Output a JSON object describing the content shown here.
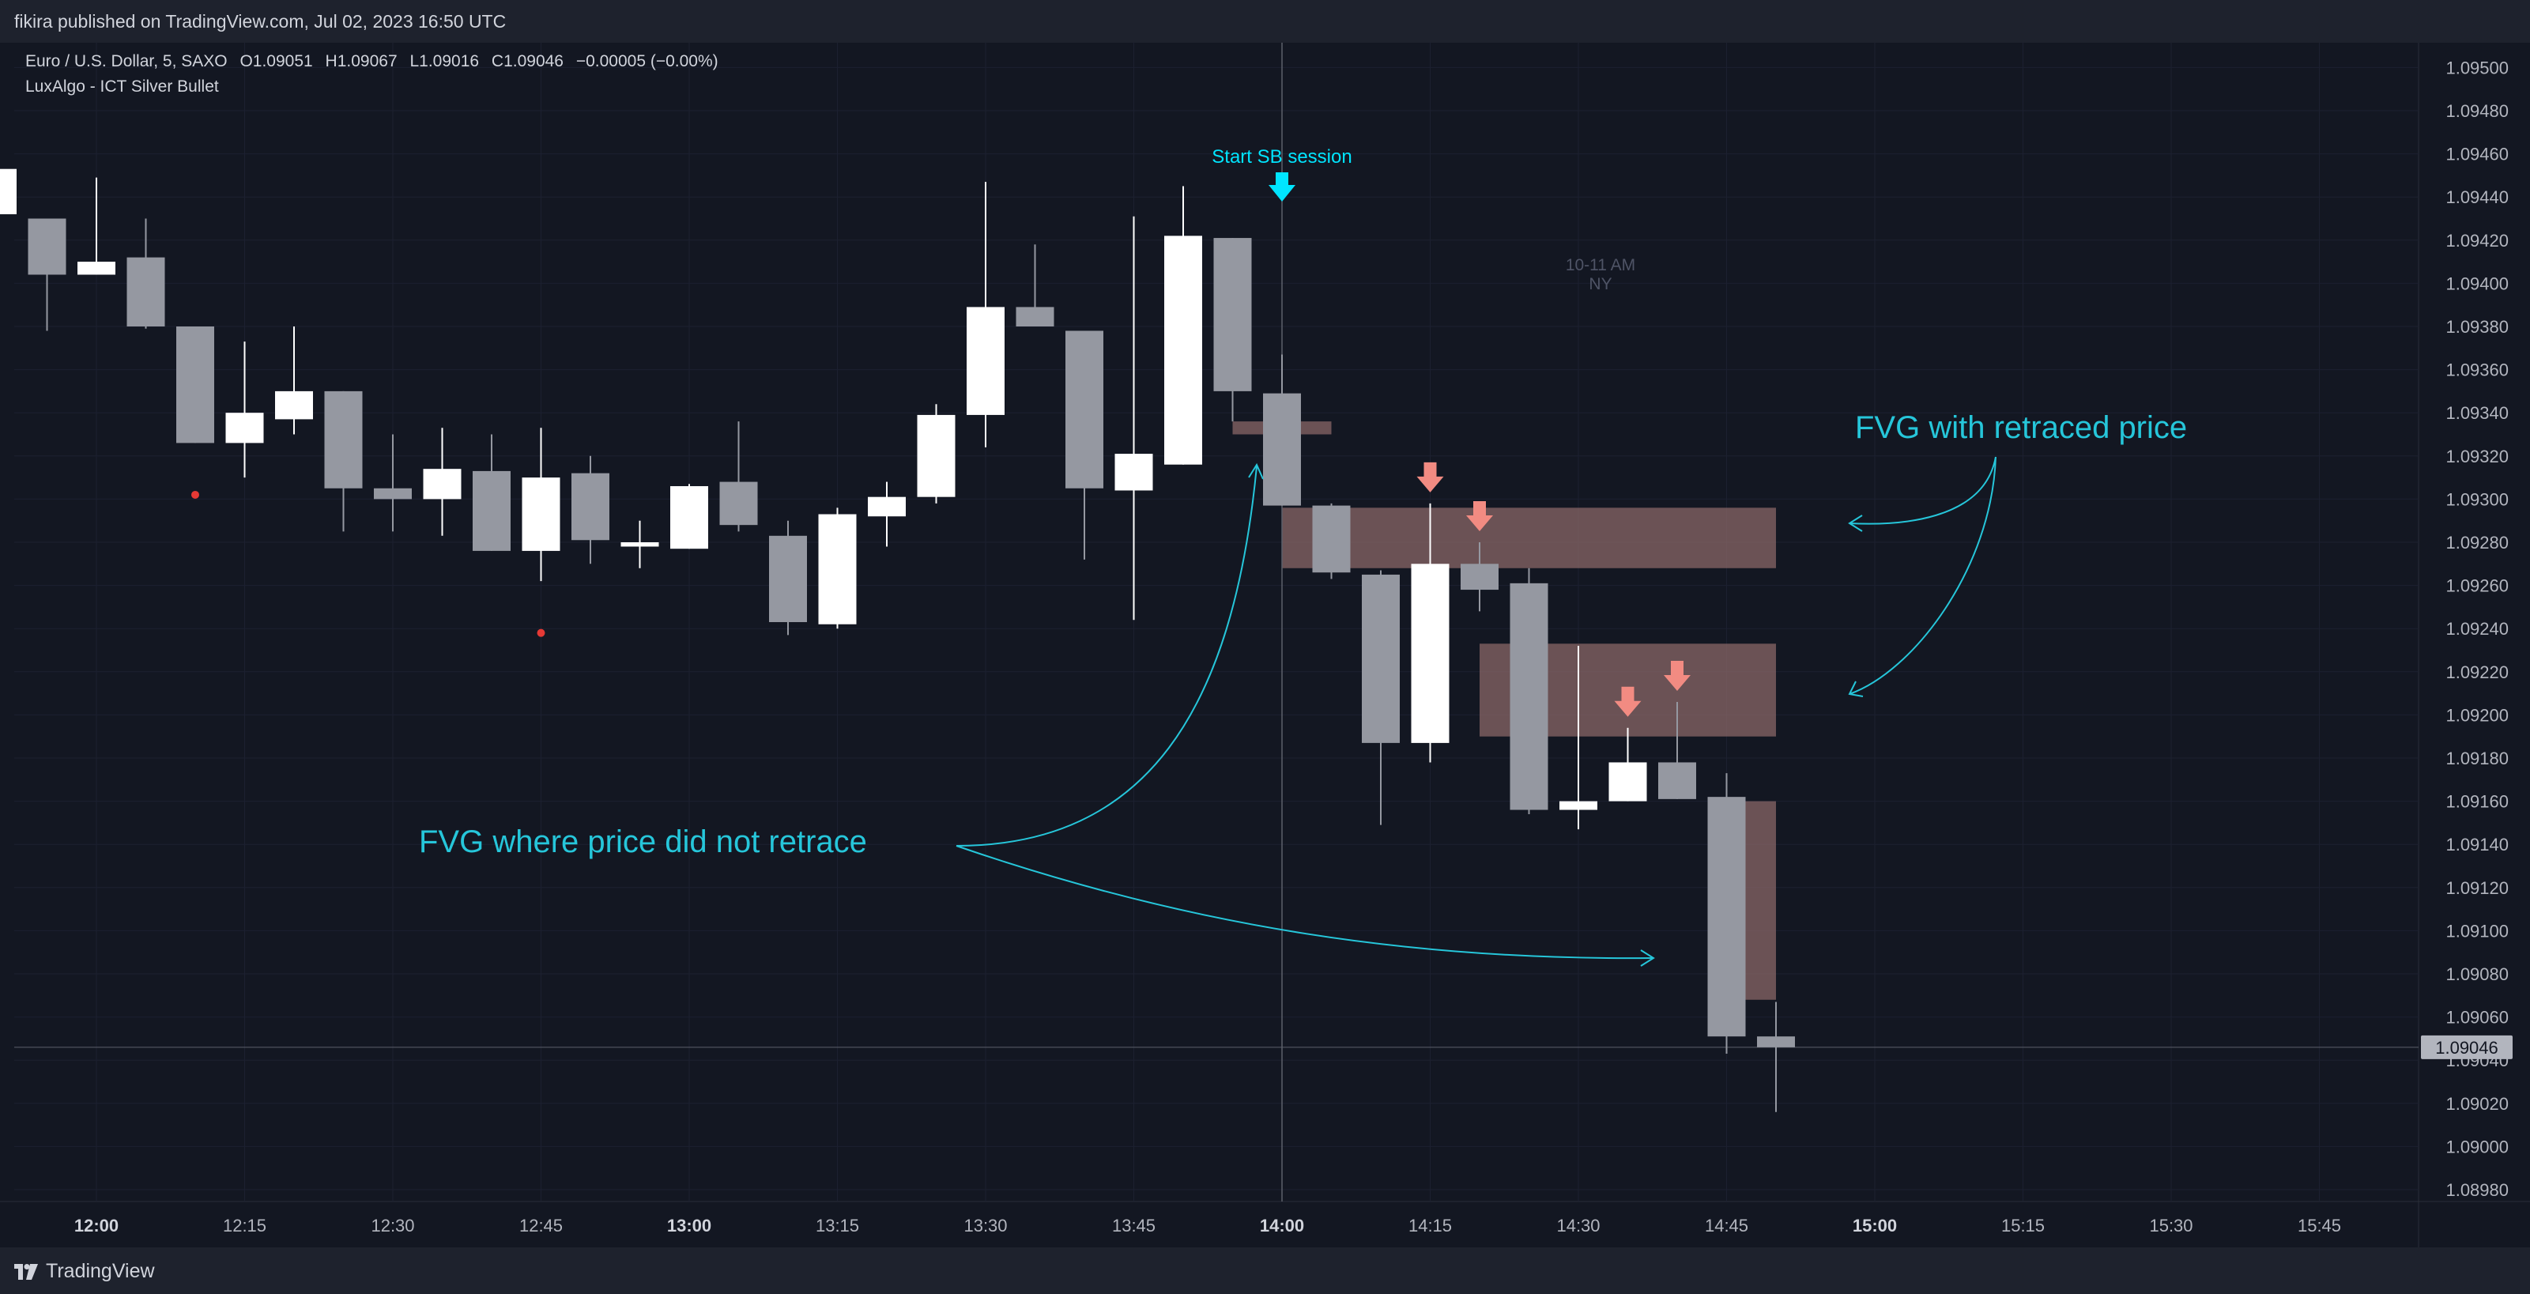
{
  "header": {
    "published": "fikira published on TradingView.com, Jul 02, 2023 16:50 UTC"
  },
  "legend": {
    "symbol": "Euro / U.S. Dollar, 5, SAXO",
    "open": "O1.09051",
    "high": "H1.09067",
    "low": "L1.09016",
    "close": "C1.09046",
    "change": "−0.00005 (−0.00%)",
    "indicator": "LuxAlgo - ICT Silver Bullet"
  },
  "footer": {
    "brand": "TradingView"
  },
  "colors": {
    "background": "#131722",
    "bull_candle": "#ffffff",
    "bear_candle": "#9598a1",
    "fvg_box": "#8d6a6a",
    "arrow_session": "#00e5ff",
    "arrow_bear": "#f28b82",
    "annotation": "#26c6da",
    "dot": "#e53935"
  },
  "chart_data": {
    "type": "candlestick",
    "price_axis": {
      "range": [
        1.0897,
        1.0951
      ],
      "ticks": [
        "1.09500",
        "1.09480",
        "1.09460",
        "1.09440",
        "1.09420",
        "1.09400",
        "1.09380",
        "1.09360",
        "1.09340",
        "1.09320",
        "1.09300",
        "1.09280",
        "1.09260",
        "1.09240",
        "1.09220",
        "1.09200",
        "1.09180",
        "1.09160",
        "1.09140",
        "1.09120",
        "1.09100",
        "1.09080",
        "1.09060",
        "1.09040",
        "1.09020",
        "1.09000",
        "1.08980"
      ],
      "last_price": "1.09046"
    },
    "time_axis": {
      "ticks": [
        {
          "t": "12:00",
          "label": "12:00",
          "bold": true
        },
        {
          "t": "12:15",
          "label": "12:15",
          "bold": false
        },
        {
          "t": "12:30",
          "label": "12:30",
          "bold": false
        },
        {
          "t": "12:45",
          "label": "12:45",
          "bold": false
        },
        {
          "t": "13:00",
          "label": "13:00",
          "bold": true
        },
        {
          "t": "13:15",
          "label": "13:15",
          "bold": false
        },
        {
          "t": "13:30",
          "label": "13:30",
          "bold": false
        },
        {
          "t": "13:45",
          "label": "13:45",
          "bold": false
        },
        {
          "t": "14:00",
          "label": "14:00",
          "bold": true
        },
        {
          "t": "14:15",
          "label": "14:15",
          "bold": false
        },
        {
          "t": "14:30",
          "label": "14:30",
          "bold": false
        },
        {
          "t": "14:45",
          "label": "14:45",
          "bold": false
        },
        {
          "t": "15:00",
          "label": "15:00",
          "bold": true
        },
        {
          "t": "15:15",
          "label": "15:15",
          "bold": false
        },
        {
          "t": "15:30",
          "label": "15:30",
          "bold": false
        },
        {
          "t": "15:45",
          "label": "15:45",
          "bold": false
        }
      ]
    },
    "candles": [
      {
        "t": "11:50",
        "o": 1.09432,
        "h": 1.09455,
        "l": 1.094,
        "c": 1.09453
      },
      {
        "t": "11:55",
        "o": 1.0943,
        "h": 1.0943,
        "l": 1.09378,
        "c": 1.09404
      },
      {
        "t": "12:00",
        "o": 1.09404,
        "h": 1.09449,
        "l": 1.09404,
        "c": 1.0941
      },
      {
        "t": "12:05",
        "o": 1.09412,
        "h": 1.0943,
        "l": 1.09379,
        "c": 1.0938
      },
      {
        "t": "12:10",
        "o": 1.0938,
        "h": 1.0938,
        "l": 1.09326,
        "c": 1.09326
      },
      {
        "t": "12:15",
        "o": 1.09326,
        "h": 1.09373,
        "l": 1.0931,
        "c": 1.0934
      },
      {
        "t": "12:20",
        "o": 1.09337,
        "h": 1.0938,
        "l": 1.0933,
        "c": 1.0935
      },
      {
        "t": "12:25",
        "o": 1.0935,
        "h": 1.0935,
        "l": 1.09285,
        "c": 1.09305
      },
      {
        "t": "12:30",
        "o": 1.09305,
        "h": 1.0933,
        "l": 1.09285,
        "c": 1.093
      },
      {
        "t": "12:35",
        "o": 1.093,
        "h": 1.09333,
        "l": 1.09283,
        "c": 1.09314
      },
      {
        "t": "12:40",
        "o": 1.09313,
        "h": 1.0933,
        "l": 1.09276,
        "c": 1.09276
      },
      {
        "t": "12:45",
        "o": 1.09276,
        "h": 1.09333,
        "l": 1.09262,
        "c": 1.0931
      },
      {
        "t": "12:50",
        "o": 1.09312,
        "h": 1.0932,
        "l": 1.0927,
        "c": 1.09281
      },
      {
        "t": "12:55",
        "o": 1.09278,
        "h": 1.0929,
        "l": 1.09268,
        "c": 1.0928
      },
      {
        "t": "13:00",
        "o": 1.09277,
        "h": 1.09307,
        "l": 1.09277,
        "c": 1.09306
      },
      {
        "t": "13:05",
        "o": 1.09308,
        "h": 1.09336,
        "l": 1.09285,
        "c": 1.09288
      },
      {
        "t": "13:10",
        "o": 1.09283,
        "h": 1.0929,
        "l": 1.09237,
        "c": 1.09243
      },
      {
        "t": "13:15",
        "o": 1.09242,
        "h": 1.09296,
        "l": 1.0924,
        "c": 1.09293
      },
      {
        "t": "13:20",
        "o": 1.09292,
        "h": 1.09308,
        "l": 1.09278,
        "c": 1.09301
      },
      {
        "t": "13:25",
        "o": 1.09301,
        "h": 1.09344,
        "l": 1.09298,
        "c": 1.09339
      },
      {
        "t": "13:30",
        "o": 1.09339,
        "h": 1.09447,
        "l": 1.09324,
        "c": 1.09389
      },
      {
        "t": "13:35",
        "o": 1.09389,
        "h": 1.09418,
        "l": 1.0938,
        "c": 1.0938
      },
      {
        "t": "13:40",
        "o": 1.09378,
        "h": 1.09378,
        "l": 1.09272,
        "c": 1.09305
      },
      {
        "t": "13:45",
        "o": 1.09304,
        "h": 1.09431,
        "l": 1.09244,
        "c": 1.09321
      },
      {
        "t": "13:50",
        "o": 1.09316,
        "h": 1.09445,
        "l": 1.09316,
        "c": 1.09422
      },
      {
        "t": "13:55",
        "o": 1.09421,
        "h": 1.09421,
        "l": 1.09336,
        "c": 1.0935
      },
      {
        "t": "14:00",
        "o": 1.09349,
        "h": 1.09367,
        "l": 1.09297,
        "c": 1.09297
      },
      {
        "t": "14:05",
        "o": 1.09297,
        "h": 1.09298,
        "l": 1.09263,
        "c": 1.09266
      },
      {
        "t": "14:10",
        "o": 1.09265,
        "h": 1.09267,
        "l": 1.09149,
        "c": 1.09187
      },
      {
        "t": "14:15",
        "o": 1.09187,
        "h": 1.09298,
        "l": 1.09178,
        "c": 1.0927
      },
      {
        "t": "14:20",
        "o": 1.0927,
        "h": 1.0928,
        "l": 1.09248,
        "c": 1.09258
      },
      {
        "t": "14:25",
        "o": 1.09261,
        "h": 1.09268,
        "l": 1.09154,
        "c": 1.09156
      },
      {
        "t": "14:30",
        "o": 1.09156,
        "h": 1.09232,
        "l": 1.09147,
        "c": 1.0916
      },
      {
        "t": "14:35",
        "o": 1.0916,
        "h": 1.09194,
        "l": 1.0916,
        "c": 1.09178
      },
      {
        "t": "14:40",
        "o": 1.09178,
        "h": 1.09206,
        "l": 1.09161,
        "c": 1.09161
      },
      {
        "t": "14:45",
        "o": 1.09162,
        "h": 1.09173,
        "l": 1.09043,
        "c": 1.09051
      },
      {
        "t": "14:50",
        "o": 1.09051,
        "h": 1.09067,
        "l": 1.09016,
        "c": 1.09046
      }
    ],
    "fvg_boxes": [
      {
        "from": "13:55",
        "to": "14:05",
        "top": 1.09336,
        "bottom": 1.0933
      },
      {
        "from": "14:00",
        "to": "14:50",
        "top": 1.09296,
        "bottom": 1.09268
      },
      {
        "from": "14:20",
        "to": "14:50",
        "top": 1.09233,
        "bottom": 1.0919
      },
      {
        "from": "14:45",
        "to": "14:50",
        "top": 1.0916,
        "bottom": 1.09068
      }
    ],
    "dots": [
      {
        "t": "12:10",
        "price": 1.09302
      },
      {
        "t": "12:45",
        "price": 1.09238
      }
    ],
    "session": {
      "start": "14:00",
      "label": "Start SB session",
      "window_label_1": "10-11 AM",
      "window_label_2": "NY"
    },
    "bear_arrows": [
      "14:15",
      "14:20",
      "14:35",
      "14:40"
    ],
    "annotations": {
      "retraced": "FVG with retraced price",
      "not_retraced": "FVG where price did not retrace"
    }
  }
}
